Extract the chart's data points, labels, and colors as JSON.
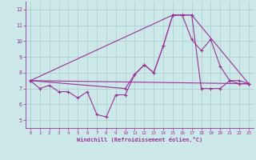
{
  "xlabel": "Windchill (Refroidissement éolien,°C)",
  "background_color": "#cce8e8",
  "grid_color": "#aacccc",
  "line_color": "#993399",
  "xlim": [
    -0.5,
    23.5
  ],
  "ylim": [
    4.5,
    12.5
  ],
  "xticks": [
    0,
    1,
    2,
    3,
    4,
    5,
    6,
    7,
    8,
    9,
    10,
    11,
    12,
    13,
    14,
    15,
    16,
    17,
    18,
    19,
    20,
    21,
    22,
    23
  ],
  "yticks": [
    5,
    6,
    7,
    8,
    9,
    10,
    11,
    12
  ],
  "line1_x": [
    0,
    1,
    2,
    3,
    4,
    5,
    6,
    7,
    8,
    9,
    10,
    11,
    12,
    13,
    14,
    15,
    16,
    17,
    18,
    19,
    20,
    21,
    22,
    23
  ],
  "line1_y": [
    7.5,
    7.0,
    7.2,
    6.8,
    6.8,
    6.4,
    6.8,
    5.35,
    5.2,
    6.6,
    6.6,
    7.9,
    8.5,
    8.0,
    9.7,
    11.65,
    11.65,
    11.65,
    7.0,
    7.0,
    7.0,
    7.5,
    7.3,
    7.3
  ],
  "line2_x": [
    0,
    23
  ],
  "line2_y": [
    7.5,
    7.3
  ],
  "line3_x": [
    0,
    15,
    16,
    17,
    23
  ],
  "line3_y": [
    7.5,
    11.65,
    11.65,
    11.65,
    7.3
  ],
  "line4_x": [
    0,
    10,
    11,
    12,
    13,
    14,
    15,
    16,
    17,
    18,
    19,
    20,
    21,
    22,
    23
  ],
  "line4_y": [
    7.5,
    7.0,
    7.9,
    8.5,
    8.0,
    9.7,
    11.65,
    11.65,
    10.1,
    9.4,
    10.1,
    8.4,
    7.5,
    7.5,
    7.3
  ]
}
